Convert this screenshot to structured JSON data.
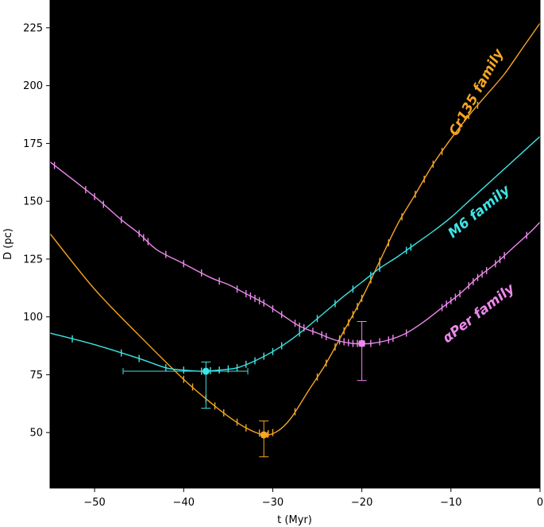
{
  "chart_data": {
    "type": "line",
    "xlabel": "t (Myr)",
    "ylabel": "D (pc)",
    "xlim": [
      -55,
      0
    ],
    "ylim": [
      26,
      237
    ],
    "xticks": [
      -50,
      -40,
      -30,
      -20,
      -10,
      0
    ],
    "yticks": [
      50,
      75,
      100,
      125,
      150,
      175,
      200,
      225
    ],
    "background": "#000000",
    "grid": false,
    "series": [
      {
        "name": "Cr135 family",
        "color": "#f5a623",
        "x": [
          -55,
          -50,
          -45,
          -40,
          -37,
          -35,
          -33,
          -31,
          -29.5,
          -28,
          -26,
          -24,
          -22,
          -20,
          -18,
          -16,
          -14,
          -12,
          -10,
          -8,
          -6,
          -4,
          -2,
          0
        ],
        "y": [
          136,
          112,
          92,
          73,
          63,
          57,
          52,
          49,
          50.5,
          56,
          68,
          80,
          94,
          108,
          124,
          140,
          153,
          166,
          177,
          187,
          196,
          205,
          216,
          227
        ],
        "markers_x": [
          -40,
          -39,
          -37.5,
          -36.5,
          -35.5,
          -34,
          -33,
          -31.5,
          -30.5,
          -30,
          -27.5,
          -25,
          -24,
          -23,
          -22.5,
          -22,
          -21.5,
          -21,
          -20.5,
          -20,
          -19,
          -18,
          -17,
          -15.5,
          -14,
          -13,
          -12,
          -11,
          -9,
          -8,
          -7
        ],
        "highlight": {
          "t": -31,
          "D": 49,
          "t_err": [
            -31.2,
            -30.6
          ],
          "D_err": [
            39.5,
            55
          ]
        }
      },
      {
        "name": "M6 family",
        "color": "#3ee4e4",
        "x": [
          -55,
          -50,
          -45,
          -42,
          -40,
          -38,
          -36,
          -34,
          -32,
          -30,
          -28,
          -26,
          -24,
          -22,
          -20,
          -18,
          -16,
          -14,
          -12,
          -10,
          -8,
          -6,
          -4,
          -2,
          0
        ],
        "y": [
          93,
          88,
          82,
          78,
          77,
          76.5,
          77,
          78,
          81,
          85,
          90,
          96,
          102.5,
          109,
          115,
          121,
          126,
          131.5,
          137,
          143,
          150,
          157,
          164,
          171,
          178
        ],
        "markers_x": [
          -52.5,
          -47,
          -45,
          -42,
          -40,
          -38,
          -37,
          -36,
          -35,
          -34,
          -33,
          -32,
          -31,
          -30,
          -29,
          -27,
          -25,
          -23,
          -21,
          -19,
          -18,
          -15,
          -14.5
        ],
        "highlight": {
          "t": -37.5,
          "D": 76.5,
          "t_err": [
            -46.8,
            -32.8
          ],
          "D_err": [
            60.5,
            80.5
          ]
        }
      },
      {
        "name": "αPer family",
        "color": "#ee88ee",
        "x": [
          -55,
          -50,
          -47,
          -45,
          -43,
          -40,
          -37,
          -35,
          -33,
          -31,
          -29,
          -27,
          -25,
          -23,
          -21,
          -20,
          -19,
          -17,
          -15,
          -13,
          -11,
          -9,
          -7,
          -5,
          -3,
          -1,
          0
        ],
        "y": [
          167,
          152,
          142,
          136,
          129,
          123,
          117,
          114,
          110,
          106,
          101,
          96,
          93,
          90,
          88.5,
          88.5,
          88.5,
          90,
          93,
          98,
          104,
          110,
          117,
          123,
          130,
          137,
          141
        ],
        "markers_x": [
          -54.5,
          -51,
          -50,
          -49,
          -47,
          -45,
          -44.5,
          -44,
          -42,
          -40,
          -38,
          -36,
          -34,
          -33,
          -32.5,
          -32,
          -31.5,
          -31,
          -30,
          -29,
          -27.5,
          -27,
          -26.5,
          -25.5,
          -24.5,
          -24,
          -22.5,
          -22,
          -21.5,
          -21,
          -20.5,
          -19,
          -18,
          -17,
          -16.5,
          -15,
          -11,
          -10.5,
          -10,
          -9.5,
          -9,
          -8,
          -7.5,
          -7,
          -6.5,
          -6,
          -5,
          -4.5,
          -4,
          -1.5
        ],
        "highlight": {
          "t": -20,
          "D": 88.5,
          "t_err": [
            -20.3,
            -19.7
          ],
          "D_err": [
            72.5,
            98
          ]
        }
      }
    ],
    "annotations": [
      {
        "text": "Cr135 family",
        "color": "#f5a623"
      },
      {
        "text": "M6 family",
        "color": "#3ee4e4"
      },
      {
        "text": "αPer family",
        "color": "#ee88ee"
      }
    ]
  }
}
